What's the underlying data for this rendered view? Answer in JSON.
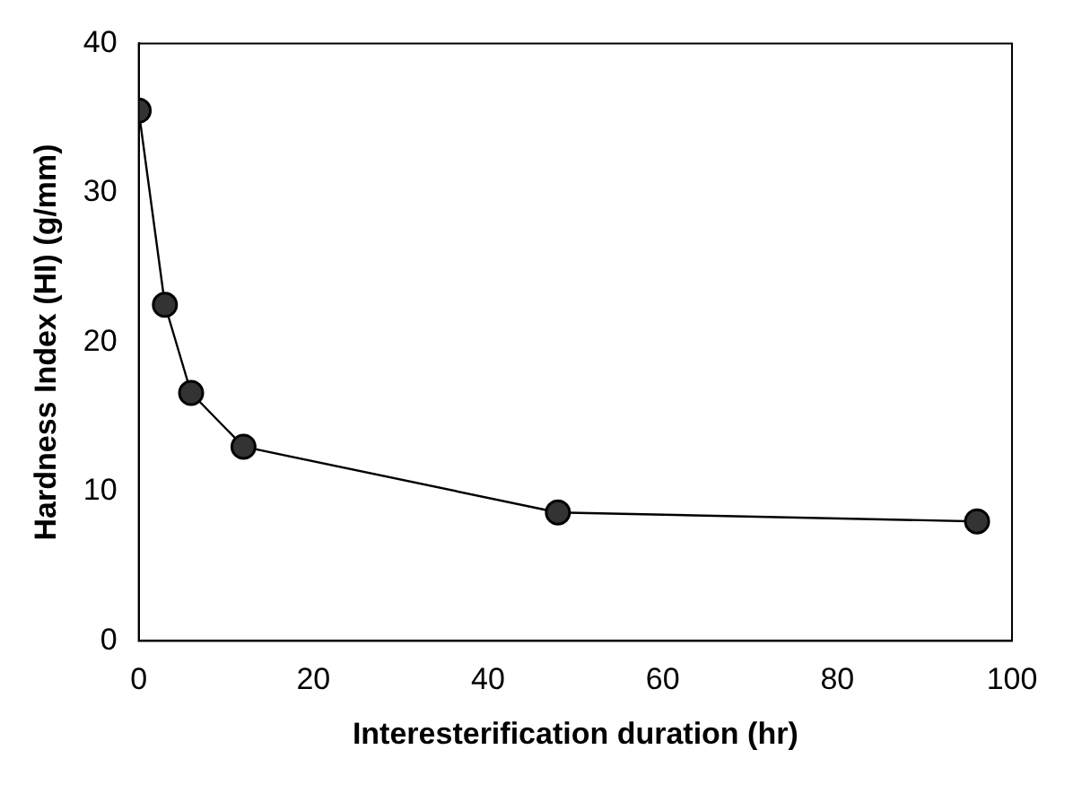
{
  "chart_data": {
    "type": "line",
    "xlabel": "Interesterification duration (hr)",
    "ylabel": "Hardness Index (HI) (g/mm)",
    "x": [
      0,
      3,
      6,
      12,
      48,
      96
    ],
    "series": [
      {
        "color": "#333333",
        "values": [
          35.5,
          22.5,
          16.6,
          13.0,
          8.6,
          8.0
        ]
      }
    ],
    "xlim": [
      0,
      100
    ],
    "xticks": [
      0,
      20,
      40,
      60,
      80,
      100
    ],
    "ylim": [
      0,
      40
    ],
    "yticks": [
      0,
      10,
      20,
      30,
      40
    ],
    "grid": false,
    "legend": false,
    "marker": "circle",
    "line_style": "solid"
  }
}
